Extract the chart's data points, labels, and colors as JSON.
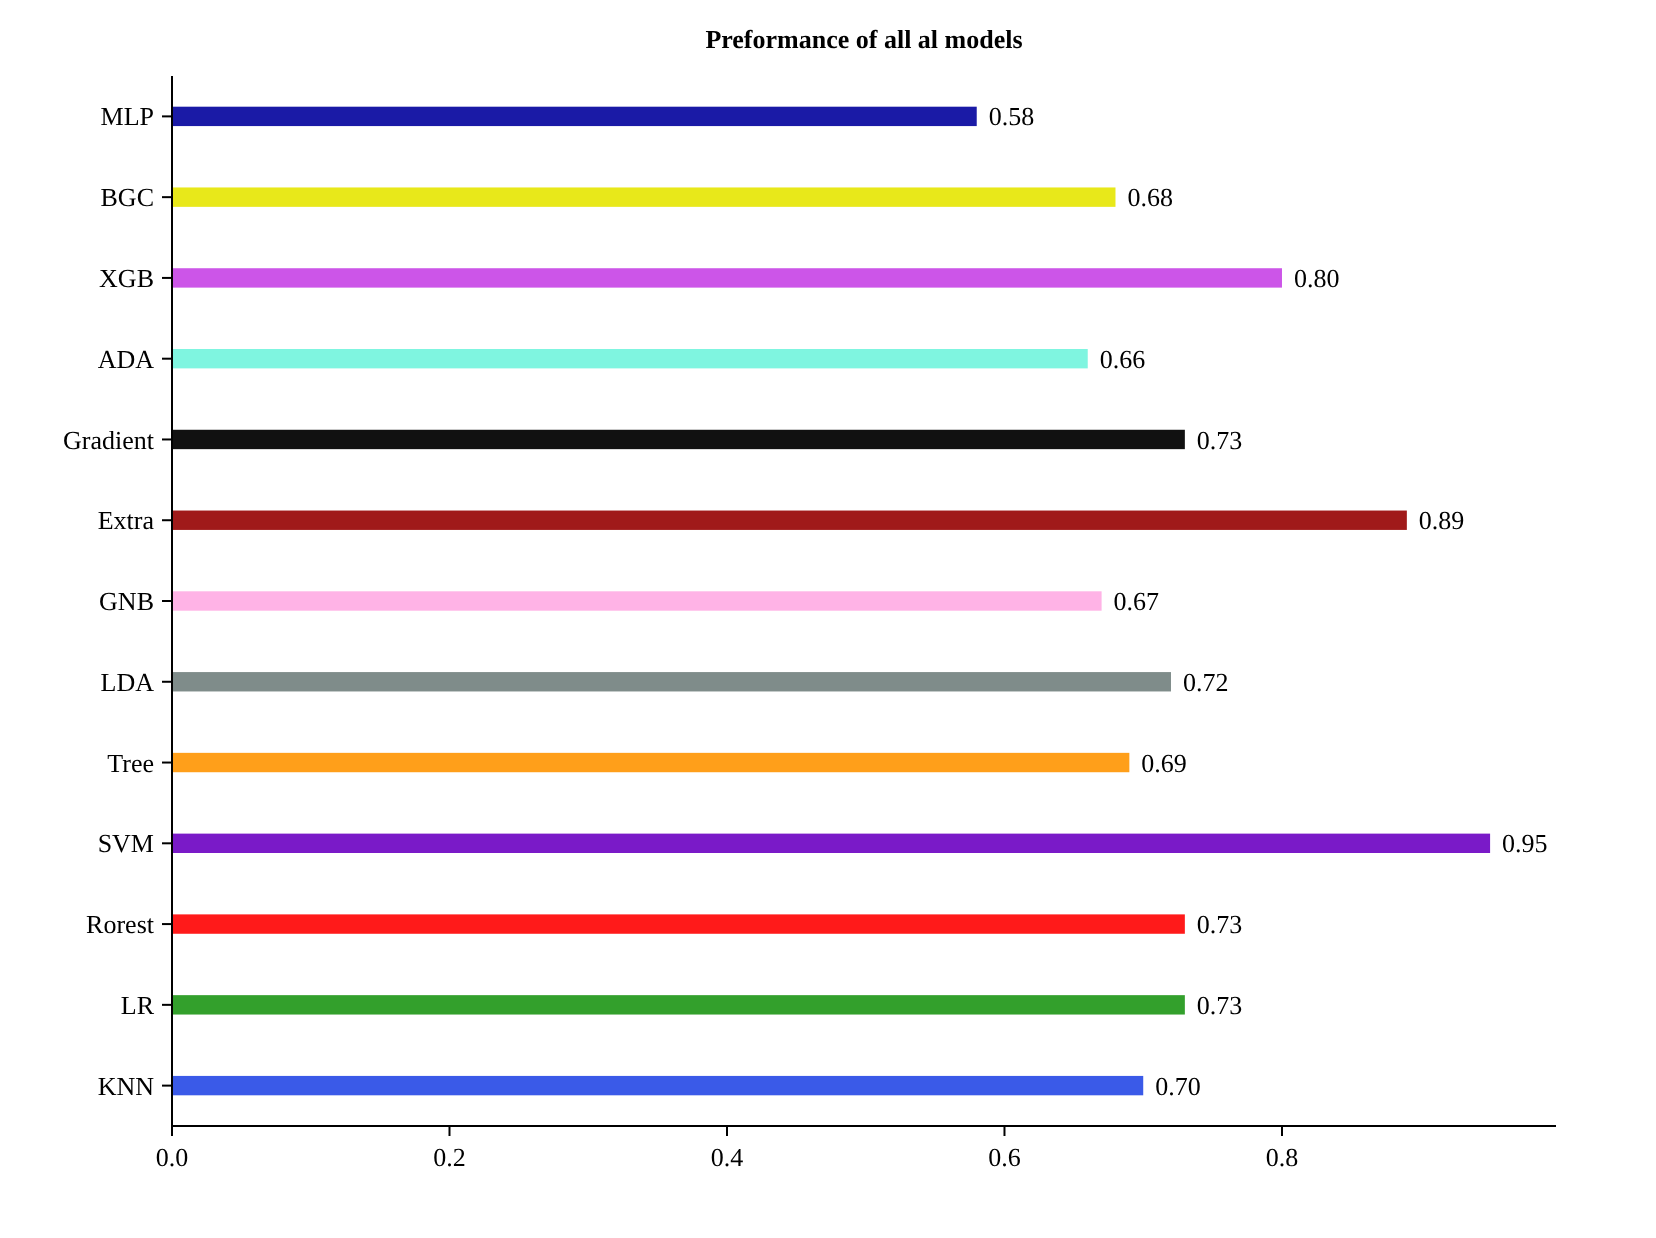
{
  "chart_data": {
    "type": "bar",
    "orientation": "horizontal",
    "title": "Preformance of all al models",
    "categories": [
      "MLP",
      "BGC",
      "XGB",
      "ADA",
      "Gradient",
      "Extra",
      "GNB",
      "LDA",
      "Tree",
      "SVM",
      "Rorest",
      "LR",
      "KNN"
    ],
    "values": [
      0.58,
      0.68,
      0.8,
      0.66,
      0.73,
      0.89,
      0.67,
      0.72,
      0.69,
      0.95,
      0.73,
      0.73,
      0.7
    ],
    "colors": [
      "#1a1aa6",
      "#e8e81a",
      "#cc55e8",
      "#7ff5e0",
      "#111111",
      "#a01a1a",
      "#ffb3e6",
      "#7f8c8a",
      "#ff9f1a",
      "#7a1ac8",
      "#ff1a1a",
      "#33a02c",
      "#3a5ae8"
    ],
    "value_labels": [
      "0.58",
      "0.68",
      "0.80",
      "0.66",
      "0.73",
      "0.89",
      "0.67",
      "0.72",
      "0.69",
      "0.95",
      "0.73",
      "0.73",
      "0.70"
    ],
    "xlim": [
      0,
      0.9975
    ],
    "xticks": [
      {
        "value": 0,
        "label": "0.0"
      },
      {
        "value": 0.2,
        "label": "0.2"
      },
      {
        "value": 0.4,
        "label": "0.4"
      },
      {
        "value": 0.6,
        "label": "0.6"
      },
      {
        "value": 0.8,
        "label": "0.8"
      }
    ],
    "grid": false
  }
}
